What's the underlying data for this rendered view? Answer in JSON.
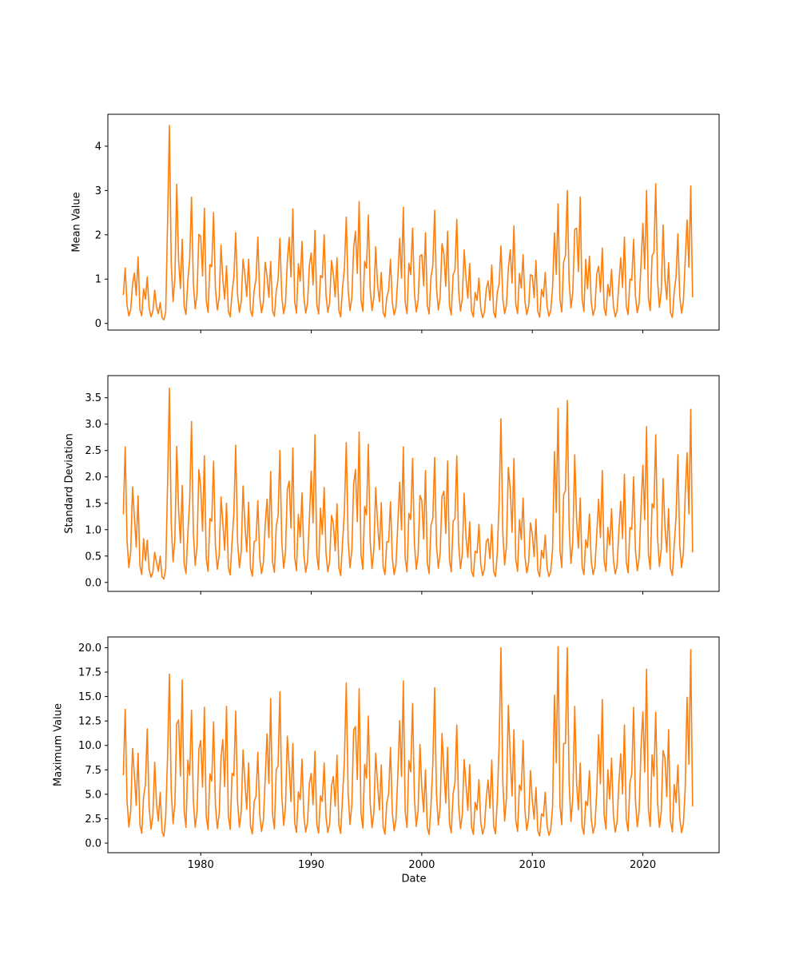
{
  "figure": {
    "background_color": "#ffffff",
    "text_color": "#000000",
    "spine_color": "#000000"
  },
  "chart_data": {
    "type": "line",
    "title": "",
    "xlabel": "Date",
    "line_color": "#ff7f0e",
    "x_start": 1973.0,
    "x_step": 0.16667,
    "x_end": 2024.5,
    "xlim": [
      1971.6,
      2026.9
    ],
    "x_ticks": [
      1980,
      1990,
      2000,
      2010,
      2020
    ],
    "x_tick_labels": [
      "1980",
      "1990",
      "2000",
      "2010",
      "2020"
    ],
    "grid": false,
    "legend": false,
    "subplots": [
      {
        "ylabel": "Mean Value",
        "ylim": [
          -0.15,
          4.72
        ],
        "yticks": [
          0,
          1,
          2,
          3,
          4
        ],
        "ytick_labels": [
          "0",
          "1",
          "2",
          "3",
          "4"
        ],
        "values": [
          0.65,
          1.25,
          0.41,
          0.17,
          0.31,
          0.89,
          1.14,
          0.63,
          1.5,
          0.31,
          0.17,
          0.78,
          0.55,
          1.05,
          0.35,
          0.15,
          0.27,
          0.75,
          0.37,
          0.22,
          0.47,
          0.13,
          0.08,
          0.26,
          2.26,
          4.47,
          1.38,
          0.49,
          1.02,
          3.14,
          1.44,
          0.79,
          1.9,
          0.38,
          0.2,
          0.98,
          1.45,
          2.85,
          0.89,
          0.33,
          0.67,
          2.01,
          1.96,
          1.07,
          2.6,
          0.51,
          0.25,
          1.33,
          1.28,
          2.5,
          0.79,
          0.3,
          0.59,
          1.77,
          0.99,
          0.55,
          1.3,
          0.28,
          0.15,
          0.68,
          1.05,
          2.05,
          0.65,
          0.25,
          0.49,
          1.45,
          1.1,
          0.61,
          1.45,
          0.3,
          0.16,
          0.75,
          1.0,
          1.95,
          0.62,
          0.24,
          0.47,
          1.38,
          1.06,
          0.59,
          1.4,
          0.29,
          0.16,
          0.73,
          0.98,
          1.92,
          0.6,
          0.22,
          0.45,
          1.4,
          1.94,
          1.05,
          2.58,
          0.49,
          0.23,
          1.35,
          0.95,
          1.85,
          0.59,
          0.23,
          0.45,
          1.31,
          1.59,
          0.87,
          2.1,
          0.42,
          0.21,
          1.08,
          1.03,
          2.0,
          0.64,
          0.25,
          0.48,
          1.42,
          1.12,
          0.6,
          1.48,
          0.29,
          0.15,
          0.8,
          1.23,
          2.4,
          0.76,
          0.29,
          0.57,
          1.7,
          2.08,
          1.13,
          2.75,
          0.54,
          0.27,
          1.4,
          1.25,
          2.45,
          0.77,
          0.29,
          0.58,
          1.73,
          0.88,
          0.49,
          1.15,
          0.25,
          0.14,
          0.6,
          0.75,
          1.45,
          0.47,
          0.19,
          0.36,
          1.03,
          1.92,
          1.02,
          2.62,
          0.48,
          0.22,
          1.36,
          1.1,
          2.15,
          0.68,
          0.26,
          0.51,
          1.52,
          1.55,
          0.85,
          2.05,
          0.41,
          0.21,
          1.05,
          1.3,
          2.55,
          0.8,
          0.3,
          0.6,
          1.8,
          1.56,
          0.84,
          2.08,
          0.4,
          0.19,
          1.1,
          1.2,
          2.35,
          0.74,
          0.28,
          0.56,
          1.66,
          1.03,
          0.57,
          1.35,
          0.28,
          0.15,
          0.7,
          0.52,
          1.02,
          0.33,
          0.13,
          0.25,
          0.78,
          0.96,
          0.52,
          1.32,
          0.26,
          0.13,
          0.7,
          0.9,
          1.75,
          0.56,
          0.22,
          0.42,
          1.24,
          1.66,
          0.91,
          2.2,
          0.44,
          0.22,
          1.13,
          0.8,
          1.55,
          0.5,
          0.2,
          0.38,
          1.1,
          1.08,
          0.58,
          1.42,
          0.27,
          0.14,
          0.77,
          0.6,
          1.15,
          0.38,
          0.16,
          0.29,
          0.82,
          2.04,
          1.11,
          2.7,
          0.53,
          0.26,
          1.38,
          1.53,
          3.0,
          0.94,
          0.35,
          0.7,
          2.12,
          2.15,
          1.17,
          2.85,
          0.55,
          0.27,
          1.45,
          0.78,
          1.52,
          0.48,
          0.18,
          0.35,
          1.12,
          1.29,
          0.71,
          1.7,
          0.35,
          0.18,
          0.88,
          0.62,
          1.22,
          0.39,
          0.15,
          0.29,
          0.91,
          1.48,
          0.81,
          1.95,
          0.39,
          0.2,
          1.0,
          0.98,
          1.9,
          0.61,
          0.24,
          0.46,
          1.35,
          2.26,
          1.23,
          3.0,
          0.58,
          0.29,
          1.53,
          1.6,
          3.15,
          0.98,
          0.36,
          0.73,
          2.22,
          1.0,
          0.54,
          1.37,
          0.25,
          0.13,
          0.72,
          1.05,
          2.02,
          0.62,
          0.23,
          0.5,
          1.44,
          2.34,
          1.27,
          3.1,
          0.6
        ]
      },
      {
        "ylabel": "Standard Deviation",
        "ylim": [
          -0.17,
          3.92
        ],
        "yticks": [
          0.0,
          0.5,
          1.0,
          1.5,
          2.0,
          2.5,
          3.0,
          3.5
        ],
        "ytick_labels": [
          "0.0",
          "0.5",
          "1.0",
          "1.5",
          "2.0",
          "2.5",
          "3.0",
          "3.5"
        ],
        "values": [
          1.3,
          2.57,
          0.79,
          0.28,
          0.58,
          1.81,
          1.24,
          0.67,
          1.64,
          0.31,
          0.15,
          0.83,
          0.41,
          0.8,
          0.25,
          0.1,
          0.19,
          0.57,
          0.38,
          0.21,
          0.5,
          0.11,
          0.06,
          0.26,
          1.85,
          3.68,
          1.12,
          0.39,
          0.83,
          2.58,
          1.39,
          0.75,
          1.84,
          0.35,
          0.17,
          0.93,
          1.54,
          3.05,
          0.93,
          0.32,
          0.69,
          2.14,
          1.81,
          0.97,
          2.4,
          0.45,
          0.21,
          1.21,
          1.16,
          2.3,
          0.7,
          0.25,
          0.52,
          1.62,
          1.13,
          0.61,
          1.5,
          0.29,
          0.14,
          0.76,
          1.31,
          2.6,
          0.79,
          0.28,
          0.59,
          1.83,
          1.1,
          0.58,
          1.52,
          0.27,
          0.12,
          0.78,
          0.79,
          1.55,
          0.48,
          0.17,
          0.36,
          1.09,
          1.58,
          0.85,
          2.1,
          0.39,
          0.19,
          1.06,
          1.26,
          2.5,
          0.76,
          0.27,
          0.57,
          1.76,
          1.92,
          1.03,
          2.55,
          0.48,
          0.22,
          1.29,
          0.86,
          1.7,
          0.52,
          0.19,
          0.39,
          1.2,
          2.11,
          1.13,
          2.8,
          0.52,
          0.24,
          1.41,
          0.91,
          1.8,
          0.55,
          0.2,
          0.41,
          1.27,
          1.12,
          0.6,
          1.49,
          0.28,
          0.13,
          0.75,
          1.34,
          2.65,
          0.81,
          0.28,
          0.6,
          1.86,
          2.14,
          1.15,
          2.85,
          0.53,
          0.25,
          1.44,
          1.28,
          2.62,
          0.77,
          0.26,
          0.61,
          1.8,
          1.14,
          0.62,
          1.51,
          0.3,
          0.15,
          0.77,
          0.77,
          1.53,
          0.46,
          0.15,
          0.34,
          1.11,
          1.9,
          1.0,
          2.57,
          0.46,
          0.2,
          1.31,
          1.19,
          2.35,
          0.72,
          0.25,
          0.53,
          1.65,
          1.55,
          0.82,
          2.12,
          0.37,
          0.17,
          1.08,
          1.21,
          2.37,
          0.7,
          0.27,
          0.55,
          1.63,
          1.73,
          0.93,
          2.3,
          0.43,
          0.2,
          1.16,
          1.21,
          2.4,
          0.73,
          0.26,
          0.54,
          1.69,
          0.87,
          0.47,
          1.15,
          0.22,
          0.11,
          0.59,
          0.56,
          1.1,
          0.34,
          0.13,
          0.26,
          0.78,
          0.83,
          0.45,
          1.1,
          0.21,
          0.11,
          0.56,
          1.56,
          3.1,
          0.94,
          0.33,
          0.7,
          2.18,
          1.77,
          0.95,
          2.35,
          0.44,
          0.21,
          1.19,
          0.81,
          1.6,
          0.49,
          0.18,
          0.37,
          1.13,
          0.91,
          0.49,
          1.2,
          0.23,
          0.11,
          0.61,
          0.46,
          0.9,
          0.28,
          0.11,
          0.21,
          0.64,
          2.48,
          1.33,
          3.3,
          0.61,
          0.28,
          1.66,
          1.74,
          3.45,
          1.05,
          0.36,
          0.77,
          2.42,
          1.21,
          0.65,
          1.6,
          0.3,
          0.15,
          0.81,
          0.66,
          1.3,
          0.4,
          0.15,
          0.3,
          0.92,
          1.58,
          0.85,
          2.12,
          0.41,
          0.21,
          1.04,
          0.71,
          1.4,
          0.43,
          0.16,
          0.32,
          0.99,
          1.54,
          0.83,
          2.05,
          0.39,
          0.18,
          1.04,
          1.01,
          2.0,
          0.61,
          0.22,
          0.46,
          1.41,
          2.22,
          1.19,
          2.95,
          0.55,
          0.25,
          1.49,
          1.41,
          2.8,
          0.85,
          0.3,
          0.63,
          1.97,
          1.06,
          0.57,
          1.4,
          0.27,
          0.13,
          0.71,
          1.23,
          2.42,
          0.71,
          0.28,
          0.56,
          1.67,
          2.46,
          1.3,
          3.28,
          0.58
        ]
      },
      {
        "ylabel": "Maximum Value",
        "ylim": [
          -0.98,
          21.1
        ],
        "yticks": [
          0.0,
          2.5,
          5.0,
          7.5,
          10.0,
          12.5,
          15.0,
          17.5,
          20.0
        ],
        "ytick_labels": [
          "0.0",
          "2.5",
          "5.0",
          "7.5",
          "10.0",
          "12.5",
          "15.0",
          "17.5",
          "20.0"
        ],
        "values": [
          7.0,
          13.7,
          4.32,
          1.64,
          3.25,
          9.68,
          6.98,
          3.86,
          9.2,
          1.9,
          1.01,
          4.75,
          6.0,
          11.7,
          3.72,
          1.44,
          2.81,
          8.28,
          3.98,
          2.26,
          5.2,
          1.18,
          0.69,
          2.75,
          8.8,
          17.3,
          5.4,
          2.0,
          4.04,
          12.2,
          12.6,
          6.86,
          16.7,
          3.25,
          1.61,
          8.5,
          6.95,
          13.6,
          4.29,
          1.63,
          3.23,
          9.61,
          10.5,
          5.74,
          13.9,
          2.75,
          1.39,
          7.1,
          6.35,
          12.4,
          3.93,
          1.51,
          2.96,
          8.77,
          10.58,
          5.78,
          14.0,
          2.77,
          1.4,
          7.15,
          6.9,
          13.5,
          4.26,
          1.62,
          3.2,
          9.54,
          6.23,
          3.46,
          8.2,
          1.72,
          0.93,
          4.25,
          4.8,
          9.3,
          3.0,
          1.2,
          2.28,
          6.6,
          11.18,
          6.1,
          14.8,
          2.91,
          1.46,
          7.55,
          7.9,
          15.5,
          4.86,
          1.82,
          3.64,
          10.94,
          7.73,
          4.26,
          10.2,
          2.08,
          1.09,
          5.25,
          4.45,
          8.6,
          2.79,
          1.13,
          2.13,
          6.11,
          7.13,
          3.94,
          9.4,
          1.94,
          1.03,
          4.85,
          4.25,
          8.2,
          2.67,
          1.09,
          2.04,
          5.83,
          6.83,
          3.78,
          9.0,
          1.87,
          1.0,
          4.65,
          8.35,
          16.4,
          5.13,
          1.91,
          3.84,
          11.57,
          11.93,
          6.5,
          15.8,
          3.09,
          1.54,
          8.05,
          6.65,
          13.0,
          4.11,
          1.57,
          3.09,
          9.19,
          6.08,
          3.38,
          8.0,
          1.69,
          0.92,
          4.15,
          5.05,
          9.8,
          3.15,
          1.25,
          2.39,
          6.95,
          12.53,
          6.82,
          16.6,
          3.23,
          1.6,
          8.45,
          7.3,
          14.3,
          4.5,
          1.7,
          3.38,
          10.1,
          5.7,
          3.18,
          7.5,
          1.6,
          0.88,
          3.9,
          8.1,
          15.9,
          4.98,
          1.86,
          3.73,
          11.22,
          7.43,
          4.1,
          9.8,
          2.01,
          1.06,
          5.05,
          6.2,
          12.1,
          3.84,
          1.48,
          2.9,
          8.56,
          6.05,
          3.35,
          8.03,
          1.66,
          0.9,
          4.18,
          3.4,
          6.5,
          2.16,
          0.92,
          1.66,
          4.64,
          6.45,
          3.58,
          8.5,
          1.78,
          0.96,
          4.4,
          10.15,
          20.0,
          6.21,
          2.27,
          4.63,
          14.09,
          8.78,
          4.82,
          11.6,
          2.33,
          1.2,
          5.95,
          5.4,
          10.5,
          3.36,
          1.32,
          2.54,
          7.44,
          4.35,
          2.46,
          5.7,
          1.27,
          0.73,
          3.0,
          2.75,
          5.2,
          1.77,
          0.79,
          1.38,
          3.73,
          15.15,
          8.22,
          20.1,
          3.86,
          1.88,
          10.2,
          10.2,
          20.0,
          6.1,
          2.2,
          4.7,
          14.0,
          6.2,
          3.4,
          8.2,
          1.7,
          0.9,
          4.3,
          3.85,
          7.4,
          2.43,
          1.01,
          1.86,
          5.27,
          11.1,
          6.06,
          14.7,
          2.89,
          1.45,
          7.5,
          4.5,
          8.7,
          2.82,
          1.14,
          2.15,
          6.18,
          9.15,
          5.02,
          12.1,
          2.42,
          1.24,
          6.2,
          7.1,
          13.9,
          4.38,
          1.66,
          3.29,
          9.82,
          13.43,
          7.3,
          17.8,
          3.45,
          1.7,
          9.05,
          6.85,
          13.4,
          4.23,
          1.61,
          3.18,
          9.47,
          8.7,
          4.75,
          11.6,
          2.3,
          1.15,
          6.0,
          4.15,
          8.0,
          2.61,
          1.07,
          1.99,
          5.69,
          14.93,
          8.08,
          19.8,
          3.81
        ]
      }
    ]
  }
}
